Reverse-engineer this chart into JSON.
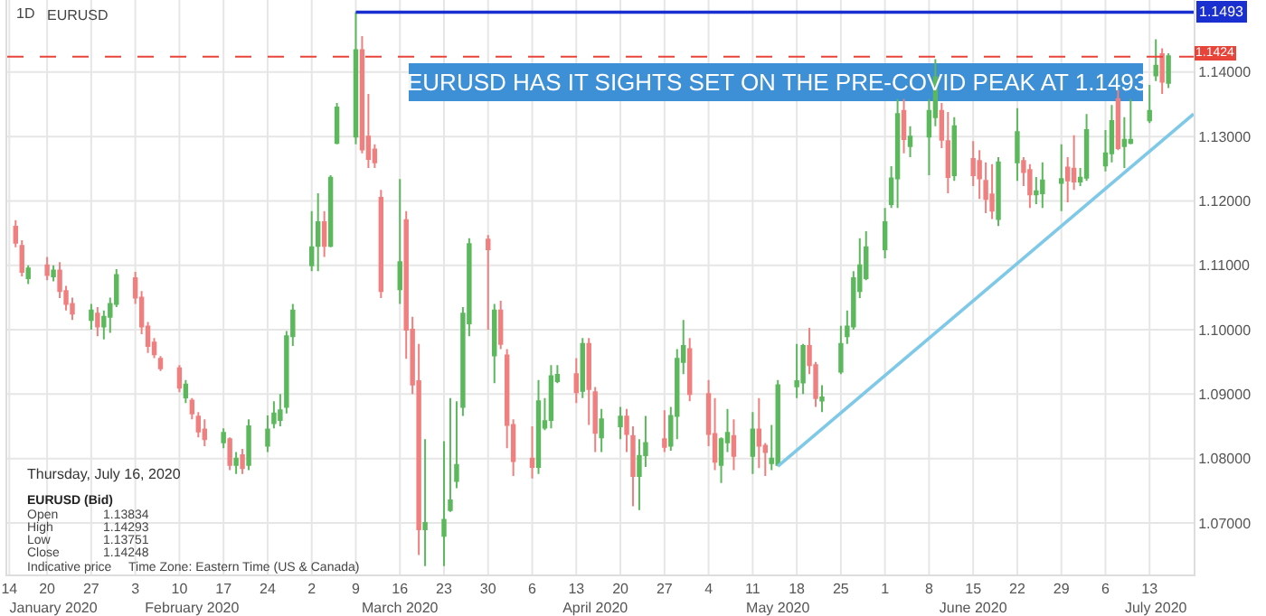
{
  "chart_data": {
    "type": "candlestick",
    "title": "EURUSD",
    "annotations": [
      "1D",
      "EURUSD HAS IT SIGHTS SET ON THE PRE-COVID PEAK AT 1.1493",
      {
        "text": "1.1493",
        "x": "2020-07-20",
        "y": 1.1493
      },
      "Thursday, July 16, 2020",
      "EURUSD (Bid)",
      "Open",
      "1.13834",
      "High",
      "1.14293",
      "Low",
      "1.13751",
      "Close",
      "1.14248",
      "Indicative price",
      "Time Zone: Eastern Time (US & Canada)"
    ],
    "series": [
      {
        "color": "#5cb85c",
        "x": [
          "2020-01-17",
          "2020-01-21",
          "2020-01-27",
          "2020-01-29",
          "2020-01-30",
          "2020-01-31",
          "2020-02-11",
          "2020-02-17",
          "2020-02-19",
          "2020-02-21",
          "2020-02-24",
          "2020-02-25",
          "2020-02-26",
          "2020-02-27",
          "2020-02-28",
          "2020-03-02",
          "2020-03-03",
          "2020-03-05",
          "2020-03-06",
          "2020-03-09",
          "2020-03-16",
          "2020-03-20",
          "2020-03-23",
          "2020-03-24",
          "2020-03-25",
          "2020-03-26",
          "2020-03-27",
          "2020-03-31",
          "2020-04-07",
          "2020-04-08",
          "2020-04-09",
          "2020-04-10",
          "2020-04-14",
          "2020-04-17",
          "2020-04-20",
          "2020-04-23",
          "2020-04-24",
          "2020-04-28",
          "2020-04-29",
          "2020-04-30",
          "2020-05-06",
          "2020-05-07",
          "2020-05-11",
          "2020-05-14",
          "2020-05-15",
          "2020-05-18",
          "2020-05-19",
          "2020-05-22",
          "2020-05-25",
          "2020-05-26",
          "2020-05-27",
          "2020-05-28",
          "2020-05-29",
          "2020-06-01",
          "2020-06-02",
          "2020-06-03",
          "2020-06-05",
          "2020-06-08",
          "2020-06-09",
          "2020-06-12",
          "2020-06-19",
          "2020-06-22",
          "2020-06-25",
          "2020-06-26",
          "2020-06-29",
          "2020-07-02",
          "2020-07-03",
          "2020-07-06",
          "2020-07-07",
          "2020-07-09",
          "2020-07-10",
          "2020-07-13",
          "2020-07-14",
          "2020-07-16"
        ],
        "ohlc": [
          [
            1.108,
            1.11,
            1.1071,
            1.1095
          ],
          [
            1.1083,
            1.11,
            1.1075,
            1.1092
          ],
          [
            1.1015,
            1.104,
            1.1,
            1.103
          ],
          [
            1.1005,
            1.103,
            1.0985,
            1.102
          ],
          [
            1.102,
            1.105,
            1.0995,
            1.104
          ],
          [
            1.104,
            1.1094,
            1.1035,
            1.1085
          ],
          [
            1.0895,
            1.0922,
            1.0886,
            1.0915
          ],
          [
            1.0825,
            1.0847,
            1.0816,
            1.084
          ],
          [
            1.079,
            1.081,
            1.0776,
            1.08
          ],
          [
            1.079,
            1.0861,
            1.0782,
            1.085
          ],
          [
            1.082,
            1.0867,
            1.081,
            1.0845
          ],
          [
            1.0855,
            1.0889,
            1.0847,
            1.087
          ],
          [
            1.086,
            1.09,
            1.085,
            1.0875
          ],
          [
            1.088,
            1.0998,
            1.087,
            1.099
          ],
          [
            1.099,
            1.104,
            1.0975,
            1.103
          ],
          [
            1.11,
            1.1184,
            1.1091,
            1.1128
          ],
          [
            1.113,
            1.1212,
            1.1091,
            1.1167
          ],
          [
            1.113,
            1.124,
            1.1128,
            1.1236
          ],
          [
            1.129,
            1.1352,
            1.1288,
            1.1345
          ],
          [
            1.13,
            1.1493,
            1.1288,
            1.1434
          ],
          [
            1.1063,
            1.1234,
            1.104,
            1.1105
          ],
          [
            1.069,
            1.083,
            1.0633,
            1.07
          ],
          [
            1.068,
            1.0827,
            1.0633,
            1.0705
          ],
          [
            1.072,
            1.0894,
            1.0717,
            1.0735
          ],
          [
            1.0765,
            1.0889,
            1.0754,
            1.079
          ],
          [
            1.088,
            1.1035,
            1.0866,
            1.1025
          ],
          [
            1.101,
            1.1142,
            1.099,
            1.1133
          ],
          [
            1.096,
            1.104,
            1.0917,
            1.103
          ],
          [
            1.0787,
            1.0922,
            1.0776,
            1.0889
          ],
          [
            1.0848,
            1.0894,
            1.0844,
            1.0858
          ],
          [
            1.086,
            1.0945,
            1.0847,
            1.0928
          ],
          [
            1.092,
            1.0945,
            1.0917,
            1.093
          ],
          [
            1.0905,
            1.0987,
            1.0894,
            1.0978
          ],
          [
            1.0833,
            1.0877,
            1.081,
            1.0861
          ],
          [
            1.085,
            1.088,
            1.083,
            1.0865
          ],
          [
            1.0773,
            1.083,
            1.072,
            1.0804
          ],
          [
            1.0805,
            1.0866,
            1.0787,
            1.0824
          ],
          [
            1.082,
            1.088,
            1.0812,
            1.0866
          ],
          [
            1.0866,
            1.097,
            1.083,
            1.0955
          ],
          [
            1.095,
            1.1015,
            1.0931,
            1.0975
          ],
          [
            1.079,
            1.0833,
            1.0762,
            1.083
          ],
          [
            1.0825,
            1.0877,
            1.081,
            1.084
          ],
          [
            1.0804,
            1.0872,
            1.0776,
            1.0845
          ],
          [
            1.0793,
            1.0852,
            1.0782,
            1.08
          ],
          [
            1.079,
            1.0922,
            1.0788,
            1.0914
          ],
          [
            1.0912,
            1.0978,
            1.0894,
            1.092
          ],
          [
            1.0918,
            1.0978,
            1.09,
            1.0975
          ],
          [
            1.089,
            1.0914,
            1.0872,
            1.0895
          ],
          [
            1.0935,
            1.1006,
            1.0931,
            1.0978
          ],
          [
            1.099,
            1.103,
            1.0978,
            1.1005
          ],
          [
            1.1005,
            1.1091,
            1.1,
            1.108
          ],
          [
            1.106,
            1.1142,
            1.1049,
            1.11
          ],
          [
            1.108,
            1.1153,
            1.1077,
            1.1128
          ],
          [
            1.1125,
            1.1189,
            1.1111,
            1.1167
          ],
          [
            1.1195,
            1.1254,
            1.1189,
            1.1235
          ],
          [
            1.1235,
            1.1358,
            1.1189,
            1.1335
          ],
          [
            1.1285,
            1.1316,
            1.1268,
            1.13
          ],
          [
            1.13,
            1.1358,
            1.124,
            1.134
          ],
          [
            1.133,
            1.142,
            1.1316,
            1.1392
          ],
          [
            1.124,
            1.133,
            1.1231,
            1.1316
          ],
          [
            1.1172,
            1.1268,
            1.1161,
            1.126
          ],
          [
            1.126,
            1.1344,
            1.1231,
            1.1307
          ],
          [
            1.121,
            1.1237,
            1.1195,
            1.1215
          ],
          [
            1.1212,
            1.126,
            1.1189,
            1.1232
          ],
          [
            1.1228,
            1.1288,
            1.1184,
            1.1234
          ],
          [
            1.123,
            1.1251,
            1.1223,
            1.1236
          ],
          [
            1.1236,
            1.1335,
            1.1231,
            1.131
          ],
          [
            1.1255,
            1.131,
            1.1246,
            1.1274
          ],
          [
            1.1274,
            1.1349,
            1.126,
            1.1324
          ],
          [
            1.1285,
            1.133,
            1.1251,
            1.1295
          ],
          [
            1.129,
            1.1358,
            1.1288,
            1.1295
          ],
          [
            1.1325,
            1.138,
            1.1321,
            1.134
          ],
          [
            1.1395,
            1.1451,
            1.1386,
            1.141
          ],
          [
            1.13834,
            1.14293,
            1.13751,
            1.14248
          ]
        ]
      },
      {
        "color": "#f08080",
        "x": [
          "2020-01-15",
          "2020-01-16",
          "2020-01-20",
          "2020-01-22",
          "2020-01-23",
          "2020-01-24",
          "2020-01-28",
          "2020-02-03",
          "2020-02-04",
          "2020-02-05",
          "2020-02-06",
          "2020-02-07",
          "2020-02-10",
          "2020-02-12",
          "2020-02-13",
          "2020-02-14",
          "2020-02-18",
          "2020-02-20",
          "2020-03-04",
          "2020-03-10",
          "2020-03-11",
          "2020-03-12",
          "2020-03-13",
          "2020-03-17",
          "2020-03-18",
          "2020-03-19",
          "2020-03-30",
          "2020-04-01",
          "2020-04-02",
          "2020-04-03",
          "2020-04-06",
          "2020-04-13",
          "2020-04-15",
          "2020-04-16",
          "2020-04-21",
          "2020-04-22",
          "2020-04-27",
          "2020-05-01",
          "2020-05-04",
          "2020-05-05",
          "2020-05-08",
          "2020-05-12",
          "2020-05-13",
          "2020-05-20",
          "2020-05-21",
          "2020-06-04",
          "2020-06-10",
          "2020-06-11",
          "2020-06-15",
          "2020-06-16",
          "2020-06-17",
          "2020-06-18",
          "2020-06-23",
          "2020-06-24",
          "2020-06-30",
          "2020-07-01",
          "2020-07-08",
          "2020-07-15"
        ],
        "ohlc": [
          [
            1.116,
            1.117,
            1.1128,
            1.1135
          ],
          [
            1.113,
            1.1139,
            1.1083,
            1.109
          ],
          [
            1.11,
            1.1113,
            1.1077,
            1.1085
          ],
          [
            1.1092,
            1.1105,
            1.1049,
            1.106
          ],
          [
            1.106,
            1.1068,
            1.103,
            1.104
          ],
          [
            1.104,
            1.105,
            1.1015,
            1.1025
          ],
          [
            1.1025,
            1.1035,
            1.099,
            1.1005
          ],
          [
            1.108,
            1.109,
            1.104,
            1.105
          ],
          [
            1.105,
            1.106,
            1.0993,
            1.1005
          ],
          [
            1.1005,
            1.1012,
            1.0964,
            1.0975
          ],
          [
            1.098,
            1.0987,
            1.0956,
            1.0962
          ],
          [
            1.0955,
            1.0959,
            1.0936,
            1.094
          ],
          [
            1.094,
            1.0945,
            1.0903,
            1.091
          ],
          [
            1.089,
            1.0894,
            1.0861,
            1.087
          ],
          [
            1.0865,
            1.0872,
            1.0833,
            1.0842
          ],
          [
            1.0845,
            1.0861,
            1.0819,
            1.083
          ],
          [
            1.083,
            1.0833,
            1.0782,
            1.079
          ],
          [
            1.0805,
            1.0815,
            1.0776,
            1.0785
          ],
          [
            1.1167,
            1.1184,
            1.1113,
            1.113
          ],
          [
            1.1434,
            1.1456,
            1.1274,
            1.128
          ],
          [
            1.13,
            1.1366,
            1.1251,
            1.1265
          ],
          [
            1.128,
            1.1288,
            1.1251,
            1.126
          ],
          [
            1.1205,
            1.1217,
            1.1049,
            1.106
          ],
          [
            1.117,
            1.1184,
            1.0955,
            1.1
          ],
          [
            1.1,
            1.102,
            1.09,
            1.0915
          ],
          [
            1.092,
            1.0978,
            1.065,
            1.069
          ],
          [
            1.114,
            1.1147,
            1.1,
            1.1125
          ],
          [
            1.103,
            1.1045,
            1.097,
            1.0978
          ],
          [
            1.096,
            1.097,
            1.0816,
            1.0852
          ],
          [
            1.0852,
            1.0861,
            1.0773,
            1.0796
          ],
          [
            1.08,
            1.085,
            1.0769,
            1.0787
          ],
          [
            1.0931,
            1.0956,
            1.0886,
            1.0903
          ],
          [
            1.0978,
            1.0987,
            1.0852,
            1.0908
          ],
          [
            1.0903,
            1.0911,
            1.081,
            1.084
          ],
          [
            1.0865,
            1.0877,
            1.081,
            1.0838
          ],
          [
            1.0835,
            1.085,
            1.0726,
            1.0773
          ],
          [
            1.083,
            1.0875,
            1.081,
            1.0818
          ],
          [
            1.097,
            1.0987,
            1.0889,
            1.09
          ],
          [
            1.09,
            1.0922,
            1.0819,
            1.0838
          ],
          [
            1.0838,
            1.0894,
            1.0782,
            1.0795
          ],
          [
            1.0835,
            1.0861,
            1.0782,
            1.0804
          ],
          [
            1.0845,
            1.0894,
            1.0785,
            1.082
          ],
          [
            1.082,
            1.0824,
            1.0773,
            1.081
          ],
          [
            1.0975,
            1.1003,
            1.0931,
            1.0945
          ],
          [
            1.0945,
            1.095,
            1.088,
            1.0894
          ],
          [
            1.134,
            1.1358,
            1.1274,
            1.1296
          ],
          [
            1.134,
            1.1352,
            1.1282,
            1.1295
          ],
          [
            1.1293,
            1.1338,
            1.1212,
            1.1237
          ],
          [
            1.1265,
            1.1293,
            1.1223,
            1.124
          ],
          [
            1.1262,
            1.1279,
            1.1203,
            1.1235
          ],
          [
            1.1231,
            1.126,
            1.1181,
            1.1203
          ],
          [
            1.121,
            1.1257,
            1.1172,
            1.1185
          ],
          [
            1.1262,
            1.1268,
            1.1223,
            1.1245
          ],
          [
            1.1248,
            1.1257,
            1.1189,
            1.121
          ],
          [
            1.1252,
            1.1268,
            1.1198,
            1.1232
          ],
          [
            1.125,
            1.1302,
            1.1217,
            1.123
          ],
          [
            1.1358,
            1.1372,
            1.1279,
            1.1282
          ],
          [
            1.1428,
            1.1437,
            1.1366,
            1.1385
          ]
        ]
      },
      {
        "type": "line",
        "color": "#1a2fd0",
        "x": [
          "2020-03-09",
          "2020-07-20"
        ],
        "values": [
          1.1493,
          1.1493
        ]
      },
      {
        "type": "line",
        "color": "#7ec8e8",
        "x": [
          "2020-05-15",
          "2020-07-20"
        ],
        "values": [
          1.0788,
          1.1335
        ]
      }
    ],
    "ref_lines": [
      {
        "axis": "y",
        "value": 1.1424,
        "label": "1.1424",
        "color": "#e8443a",
        "line_style": "dashed"
      }
    ],
    "xlim": [
      "2020-01-13T16:00",
      "2020-07-20"
    ],
    "xticks": [
      {
        "value": "2020-01-14",
        "label": "14"
      },
      {
        "value": "2020-01-20",
        "label": "20"
      },
      {
        "value": "2020-01-27",
        "label": "27"
      },
      {
        "value": "2020-02-03",
        "label": "3"
      },
      {
        "value": "2020-02-10",
        "label": "10"
      },
      {
        "value": "2020-02-17",
        "label": "17"
      },
      {
        "value": "2020-02-24",
        "label": "24"
      },
      {
        "value": "2020-03-02",
        "label": "2"
      },
      {
        "value": "2020-03-09",
        "label": "9"
      },
      {
        "value": "2020-03-16",
        "label": "16"
      },
      {
        "value": "2020-03-23",
        "label": "23"
      },
      {
        "value": "2020-03-30",
        "label": "30"
      },
      {
        "value": "2020-04-06",
        "label": "6"
      },
      {
        "value": "2020-04-13",
        "label": "13"
      },
      {
        "value": "2020-04-20",
        "label": "20"
      },
      {
        "value": "2020-04-27",
        "label": "27"
      },
      {
        "value": "2020-05-04",
        "label": "4"
      },
      {
        "value": "2020-05-11",
        "label": "11"
      },
      {
        "value": "2020-05-18",
        "label": "18"
      },
      {
        "value": "2020-05-25",
        "label": "25"
      },
      {
        "value": "2020-06-01",
        "label": "1"
      },
      {
        "value": "2020-06-08",
        "label": "8"
      },
      {
        "value": "2020-06-15",
        "label": "15"
      },
      {
        "value": "2020-06-22",
        "label": "22"
      },
      {
        "value": "2020-06-29",
        "label": "29"
      },
      {
        "value": "2020-07-06",
        "label": "6"
      },
      {
        "value": "2020-07-13",
        "label": "13"
      }
    ],
    "x2lim": [
      "2020-01-13T16:00",
      "2020-07-20"
    ],
    "x2ticks": [
      {
        "value": "2020-01-21",
        "label": "January 2020"
      },
      {
        "value": "2020-02-12",
        "label": "February 2020"
      },
      {
        "value": "2020-03-16",
        "label": "March 2020"
      },
      {
        "value": "2020-04-16",
        "label": "April 2020"
      },
      {
        "value": "2020-05-15",
        "label": "May 2020"
      },
      {
        "value": "2020-06-15",
        "label": "June 2020"
      },
      {
        "value": "2020-07-14",
        "label": "July 2020"
      }
    ],
    "ylim": [
      1.062,
      1.1512
    ],
    "yticks": [
      {
        "value": 1.07,
        "label": "1.07000"
      },
      {
        "value": 1.08,
        "label": "1.08000"
      },
      {
        "value": 1.09,
        "label": "1.09000"
      },
      {
        "value": 1.1,
        "label": "1.10000"
      },
      {
        "value": 1.11,
        "label": "1.11000"
      },
      {
        "value": 1.12,
        "label": "1.12000"
      },
      {
        "value": 1.13,
        "label": "1.13000"
      },
      {
        "value": 1.14,
        "label": "1.14000"
      }
    ],
    "grid": true
  }
}
